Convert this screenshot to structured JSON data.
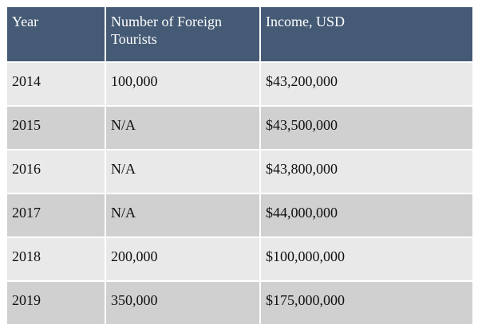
{
  "chart_data": {
    "type": "table",
    "columns": [
      "Year",
      "Number of Foreign Tourists",
      "Income, USD"
    ],
    "rows": [
      [
        "2014",
        "100,000",
        "$43,200,000"
      ],
      [
        "2015",
        "N/A",
        "$43,500,000"
      ],
      [
        "2016",
        "N/A",
        "$43,800,000"
      ],
      [
        "2017",
        "N/A",
        "$44,000,000"
      ],
      [
        "2018",
        "200,000",
        "$100,000,000"
      ],
      [
        "2019",
        "350,000",
        "$175,000,000"
      ]
    ],
    "header_color": "#455a75",
    "row_colors": [
      "#e9e9e9",
      "#d0d0d0"
    ]
  }
}
